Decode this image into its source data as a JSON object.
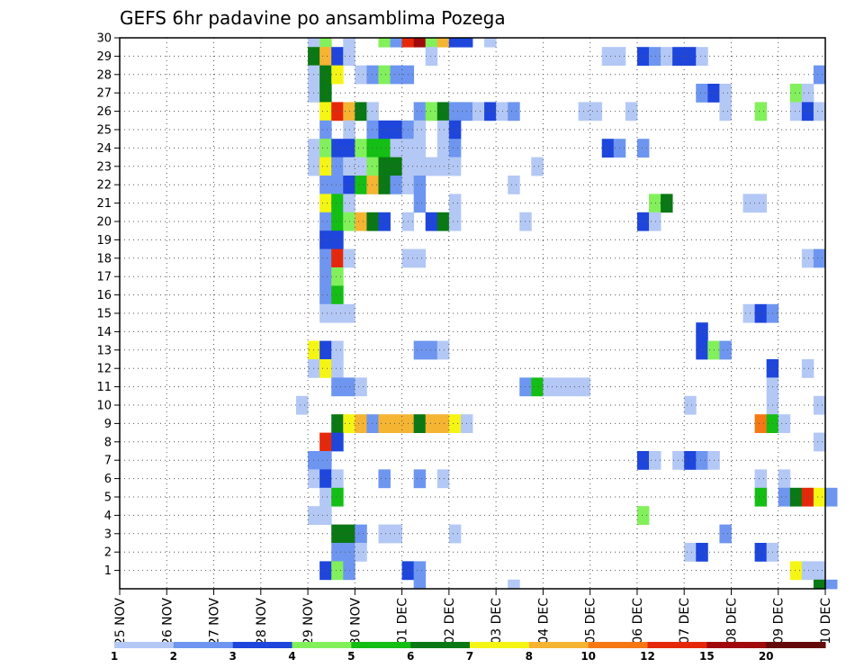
{
  "chart_data": {
    "type": "heatmap",
    "title": "GEFS 6hr padavine po ansamblima Pozega",
    "xlabel": "",
    "ylabel": "",
    "x_ticks": [
      "25 NOV",
      "26 NOV",
      "27 NOV",
      "28 NOV",
      "29 NOV",
      "30 NOV",
      "01 DEC",
      "02 DEC",
      "03 DEC",
      "04 DEC",
      "05 DEC",
      "06 DEC",
      "07 DEC",
      "08 DEC",
      "09 DEC",
      "10 DEC"
    ],
    "y_ticks": [
      1,
      2,
      3,
      4,
      5,
      6,
      7,
      8,
      9,
      10,
      11,
      12,
      13,
      14,
      15,
      16,
      17,
      18,
      19,
      20,
      21,
      22,
      23,
      24,
      25,
      26,
      27,
      28,
      29,
      30
    ],
    "y_range": [
      0,
      30
    ],
    "time_step_hours": 6,
    "grid": true,
    "colorbar": {
      "labels": [
        "1",
        "2",
        "3",
        "4",
        "5",
        "6",
        "7",
        "8",
        "10",
        "12",
        "15",
        "20"
      ],
      "colors": [
        "#b4c8f5",
        "#6e96f0",
        "#1e46dc",
        "#82f05a",
        "#14be14",
        "#0a7814",
        "#f5f514",
        "#f5b432",
        "#f57814",
        "#e6280a",
        "#a00a0a",
        "#640a0a"
      ]
    },
    "cells": [
      [
        30,
        16,
        0
      ],
      [
        30,
        17,
        3
      ],
      [
        30,
        19,
        0
      ],
      [
        30,
        22,
        3
      ],
      [
        30,
        23,
        1
      ],
      [
        30,
        24,
        9
      ],
      [
        30,
        25,
        10
      ],
      [
        30,
        26,
        3
      ],
      [
        30,
        27,
        7
      ],
      [
        30,
        28,
        2
      ],
      [
        30,
        29,
        2
      ],
      [
        30,
        31,
        0
      ],
      [
        29,
        16,
        5
      ],
      [
        29,
        17,
        7
      ],
      [
        29,
        18,
        2
      ],
      [
        29,
        19,
        0
      ],
      [
        29,
        26,
        0
      ],
      [
        29,
        41,
        0
      ],
      [
        29,
        42,
        0
      ],
      [
        29,
        44,
        2
      ],
      [
        29,
        45,
        1
      ],
      [
        29,
        46,
        0
      ],
      [
        29,
        47,
        2
      ],
      [
        29,
        48,
        2
      ],
      [
        29,
        49,
        0
      ],
      [
        28,
        16,
        0
      ],
      [
        28,
        17,
        5
      ],
      [
        28,
        18,
        6
      ],
      [
        28,
        20,
        0
      ],
      [
        28,
        21,
        1
      ],
      [
        28,
        22,
        3
      ],
      [
        28,
        23,
        1
      ],
      [
        28,
        24,
        1
      ],
      [
        28,
        59,
        1
      ],
      [
        27,
        16,
        0
      ],
      [
        27,
        17,
        5
      ],
      [
        27,
        49,
        1
      ],
      [
        27,
        50,
        2
      ],
      [
        27,
        51,
        0
      ],
      [
        27,
        57,
        3
      ],
      [
        27,
        58,
        0
      ],
      [
        26,
        17,
        6
      ],
      [
        26,
        18,
        9
      ],
      [
        26,
        19,
        7
      ],
      [
        26,
        20,
        5
      ],
      [
        26,
        21,
        0
      ],
      [
        26,
        25,
        1
      ],
      [
        26,
        26,
        3
      ],
      [
        26,
        27,
        5
      ],
      [
        26,
        28,
        1
      ],
      [
        26,
        29,
        1
      ],
      [
        26,
        30,
        0
      ],
      [
        26,
        31,
        2
      ],
      [
        26,
        32,
        0
      ],
      [
        26,
        33,
        1
      ],
      [
        26,
        39,
        0
      ],
      [
        26,
        40,
        0
      ],
      [
        26,
        43,
        0
      ],
      [
        26,
        51,
        0
      ],
      [
        26,
        54,
        3
      ],
      [
        26,
        57,
        0
      ],
      [
        26,
        58,
        2
      ],
      [
        26,
        59,
        0
      ],
      [
        25,
        17,
        1
      ],
      [
        25,
        19,
        0
      ],
      [
        25,
        21,
        1
      ],
      [
        25,
        22,
        2
      ],
      [
        25,
        23,
        2
      ],
      [
        25,
        24,
        1
      ],
      [
        25,
        25,
        0
      ],
      [
        25,
        27,
        0
      ],
      [
        25,
        28,
        2
      ],
      [
        24,
        16,
        0
      ],
      [
        24,
        17,
        3
      ],
      [
        24,
        18,
        2
      ],
      [
        24,
        19,
        2
      ],
      [
        24,
        20,
        3
      ],
      [
        24,
        21,
        4
      ],
      [
        24,
        22,
        4
      ],
      [
        24,
        23,
        0
      ],
      [
        24,
        24,
        0
      ],
      [
        24,
        25,
        0
      ],
      [
        24,
        27,
        0
      ],
      [
        24,
        28,
        1
      ],
      [
        24,
        41,
        2
      ],
      [
        24,
        42,
        1
      ],
      [
        24,
        44,
        1
      ],
      [
        23,
        16,
        0
      ],
      [
        23,
        17,
        6
      ],
      [
        23,
        18,
        1
      ],
      [
        23,
        19,
        0
      ],
      [
        23,
        20,
        0
      ],
      [
        23,
        21,
        3
      ],
      [
        23,
        22,
        5
      ],
      [
        23,
        23,
        5
      ],
      [
        23,
        24,
        0
      ],
      [
        23,
        25,
        0
      ],
      [
        23,
        26,
        0
      ],
      [
        23,
        27,
        0
      ],
      [
        23,
        28,
        0
      ],
      [
        23,
        35,
        0
      ],
      [
        22,
        17,
        1
      ],
      [
        22,
        18,
        1
      ],
      [
        22,
        19,
        2
      ],
      [
        22,
        20,
        4
      ],
      [
        22,
        21,
        7
      ],
      [
        22,
        22,
        5
      ],
      [
        22,
        23,
        1
      ],
      [
        22,
        24,
        0
      ],
      [
        22,
        25,
        1
      ],
      [
        22,
        33,
        0
      ],
      [
        21,
        17,
        6
      ],
      [
        21,
        18,
        4
      ],
      [
        21,
        19,
        0
      ],
      [
        21,
        25,
        1
      ],
      [
        21,
        28,
        0
      ],
      [
        21,
        45,
        3
      ],
      [
        21,
        46,
        5
      ],
      [
        21,
        53,
        0
      ],
      [
        21,
        54,
        0
      ],
      [
        20,
        17,
        1
      ],
      [
        20,
        18,
        4
      ],
      [
        20,
        19,
        3
      ],
      [
        20,
        20,
        7
      ],
      [
        20,
        21,
        5
      ],
      [
        20,
        22,
        2
      ],
      [
        20,
        24,
        0
      ],
      [
        20,
        26,
        2
      ],
      [
        20,
        27,
        5
      ],
      [
        20,
        28,
        0
      ],
      [
        20,
        34,
        0
      ],
      [
        20,
        44,
        2
      ],
      [
        20,
        45,
        0
      ],
      [
        19,
        17,
        2
      ],
      [
        19,
        18,
        2
      ],
      [
        18,
        17,
        1
      ],
      [
        18,
        18,
        9
      ],
      [
        18,
        19,
        0
      ],
      [
        18,
        24,
        0
      ],
      [
        18,
        25,
        0
      ],
      [
        18,
        58,
        0
      ],
      [
        18,
        59,
        1
      ],
      [
        17,
        17,
        1
      ],
      [
        17,
        18,
        3
      ],
      [
        16,
        17,
        1
      ],
      [
        16,
        18,
        4
      ],
      [
        15,
        17,
        0
      ],
      [
        15,
        18,
        0
      ],
      [
        15,
        19,
        0
      ],
      [
        15,
        53,
        0
      ],
      [
        15,
        54,
        2
      ],
      [
        15,
        55,
        1
      ],
      [
        14,
        49,
        2
      ],
      [
        13,
        16,
        6
      ],
      [
        13,
        17,
        2
      ],
      [
        13,
        18,
        0
      ],
      [
        13,
        25,
        1
      ],
      [
        13,
        26,
        1
      ],
      [
        13,
        27,
        0
      ],
      [
        13,
        49,
        2
      ],
      [
        13,
        50,
        3
      ],
      [
        13,
        51,
        1
      ],
      [
        12,
        16,
        0
      ],
      [
        12,
        17,
        6
      ],
      [
        12,
        18,
        0
      ],
      [
        12,
        55,
        2
      ],
      [
        12,
        58,
        0
      ],
      [
        11,
        18,
        1
      ],
      [
        11,
        19,
        1
      ],
      [
        11,
        20,
        0
      ],
      [
        11,
        34,
        1
      ],
      [
        11,
        35,
        4
      ],
      [
        11,
        36,
        0
      ],
      [
        11,
        37,
        0
      ],
      [
        11,
        38,
        0
      ],
      [
        11,
        39,
        0
      ],
      [
        11,
        55,
        0
      ],
      [
        10,
        15,
        0
      ],
      [
        10,
        48,
        0
      ],
      [
        10,
        55,
        0
      ],
      [
        10,
        59,
        0
      ],
      [
        9,
        18,
        5
      ],
      [
        9,
        19,
        6
      ],
      [
        9,
        20,
        7
      ],
      [
        9,
        21,
        1
      ],
      [
        9,
        22,
        7
      ],
      [
        9,
        23,
        7
      ],
      [
        9,
        24,
        7
      ],
      [
        9,
        25,
        5
      ],
      [
        9,
        26,
        7
      ],
      [
        9,
        27,
        7
      ],
      [
        9,
        28,
        6
      ],
      [
        9,
        29,
        0
      ],
      [
        9,
        54,
        8
      ],
      [
        9,
        55,
        4
      ],
      [
        9,
        56,
        0
      ],
      [
        8,
        17,
        9
      ],
      [
        8,
        18,
        2
      ],
      [
        8,
        59,
        0
      ],
      [
        7,
        16,
        1
      ],
      [
        7,
        17,
        1
      ],
      [
        7,
        44,
        2
      ],
      [
        7,
        45,
        0
      ],
      [
        7,
        47,
        0
      ],
      [
        7,
        48,
        2
      ],
      [
        7,
        49,
        1
      ],
      [
        7,
        50,
        0
      ],
      [
        6,
        16,
        0
      ],
      [
        6,
        17,
        2
      ],
      [
        6,
        18,
        0
      ],
      [
        6,
        22,
        1
      ],
      [
        6,
        25,
        1
      ],
      [
        6,
        27,
        0
      ],
      [
        6,
        54,
        0
      ],
      [
        6,
        56,
        0
      ],
      [
        5,
        17,
        0
      ],
      [
        5,
        18,
        4
      ],
      [
        5,
        54,
        4
      ],
      [
        5,
        56,
        1
      ],
      [
        5,
        57,
        5
      ],
      [
        5,
        58,
        9
      ],
      [
        5,
        59,
        6
      ],
      [
        5,
        60,
        1
      ],
      [
        4,
        16,
        0
      ],
      [
        4,
        17,
        0
      ],
      [
        4,
        44,
        3
      ],
      [
        3,
        18,
        5
      ],
      [
        3,
        19,
        5
      ],
      [
        3,
        20,
        1
      ],
      [
        3,
        22,
        0
      ],
      [
        3,
        23,
        0
      ],
      [
        3,
        28,
        0
      ],
      [
        3,
        51,
        1
      ],
      [
        2,
        18,
        1
      ],
      [
        2,
        19,
        1
      ],
      [
        2,
        20,
        0
      ],
      [
        2,
        48,
        0
      ],
      [
        2,
        49,
        2
      ],
      [
        2,
        54,
        2
      ],
      [
        2,
        55,
        0
      ],
      [
        1,
        17,
        2
      ],
      [
        1,
        18,
        3
      ],
      [
        1,
        19,
        1
      ],
      [
        1,
        24,
        2
      ],
      [
        1,
        25,
        1
      ],
      [
        1,
        57,
        6
      ],
      [
        1,
        58,
        0
      ],
      [
        1,
        59,
        0
      ],
      [
        0,
        25,
        1
      ],
      [
        0,
        33,
        0
      ],
      [
        0,
        59,
        5
      ],
      [
        0,
        60,
        1
      ]
    ]
  }
}
